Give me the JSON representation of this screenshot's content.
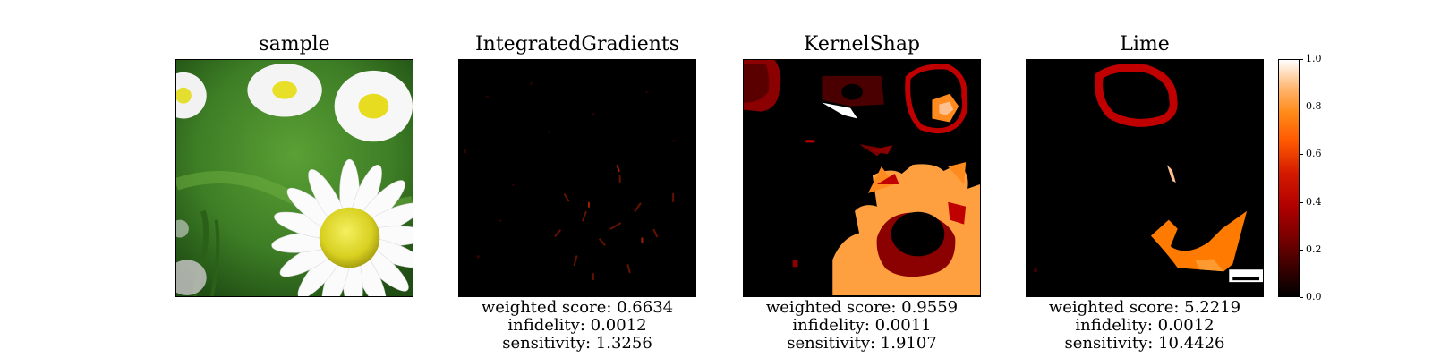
{
  "panels": [
    {
      "title": "sample"
    },
    {
      "title": "IntegratedGradients",
      "metrics": {
        "weighted_score": "weighted score: 0.6634",
        "infidelity": "infidelity: 0.0012",
        "sensitivity": "sensitivity: 1.3256"
      }
    },
    {
      "title": "KernelShap",
      "metrics": {
        "weighted_score": "weighted score: 0.9559",
        "infidelity": "infidelity: 0.0011",
        "sensitivity": "sensitivity: 1.9107"
      }
    },
    {
      "title": "Lime",
      "metrics": {
        "weighted_score": "weighted score: 5.2219",
        "infidelity": "infidelity: 0.0012",
        "sensitivity": "sensitivity: 10.4426"
      }
    }
  ],
  "colorbar": {
    "ticks": [
      "0.0",
      "0.2",
      "0.4",
      "0.6",
      "0.8",
      "1.0"
    ]
  },
  "colors": {
    "dark_red": "#8b0000",
    "red": "#c00000",
    "orange": "#ff8a1e",
    "light_orange": "#ffa040",
    "peach": "#ffc090"
  }
}
